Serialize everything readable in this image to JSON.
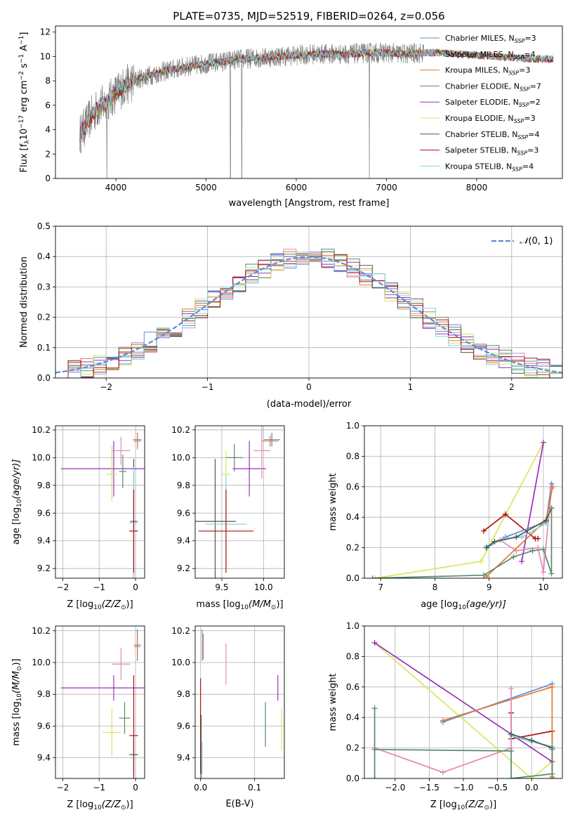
{
  "figure": {
    "title": "PLATE=0735, MJD=52519, FIBERID=0264, z=0.056"
  },
  "colors": {
    "chabrier_miles": "#5b8bd6",
    "salpeter_miles": "#e587b8",
    "kroupa_miles": "#e07b2e",
    "chabrier_elodie": "#5a8a6a",
    "salpeter_elodie": "#9b30b8",
    "kroupa_elodie": "#d4e85a",
    "chabrier_stelib": "#4a5a4a",
    "salpeter_stelib": "#b01010",
    "kroupa_stelib": "#7fd6e0",
    "data": "#808080",
    "gaussian": "#5b8bd6"
  },
  "chart_data": [
    {
      "id": "spectrum",
      "type": "line",
      "xlabel": "wavelength [Angstrom, rest frame]",
      "ylabel_main": "Flux [f",
      "ylabel_sub": "λ",
      "ylabel_rest": "10",
      "ylabel_sup1": "−17",
      "ylabel_rest2": " erg cm",
      "ylabel_sup2": "−2",
      "ylabel_rest3": " s",
      "ylabel_sup3": "−1",
      "ylabel_rest4": " A",
      "ylabel_sup4": "−1",
      "ylabel_rest5": "]",
      "xlim": [
        3330,
        8950
      ],
      "ylim": [
        0,
        12.5
      ],
      "xticks": [
        4000,
        5000,
        6000,
        7000,
        8000
      ],
      "yticks": [
        0,
        2,
        4,
        6,
        8,
        10,
        12
      ],
      "legend_position": "right",
      "legend": [
        {
          "pre": "Chabrier MILES, N",
          "sub": "SSP",
          "post": "=3",
          "color_key": "chabrier_miles"
        },
        {
          "pre": "Salpeter MILES, N",
          "sub": "SSP",
          "post": "=4",
          "color_key": "salpeter_miles"
        },
        {
          "pre": "Kroupa MILES, N",
          "sub": "SSP",
          "post": "=3",
          "color_key": "kroupa_miles"
        },
        {
          "pre": "Chabrier ELODIE, N",
          "sub": "SSP",
          "post": "=7",
          "color_key": "chabrier_elodie"
        },
        {
          "pre": "Salpeter ELODIE, N",
          "sub": "SSP",
          "post": "=2",
          "color_key": "salpeter_elodie"
        },
        {
          "pre": "Kroupa ELODIE, N",
          "sub": "SSP",
          "post": "=3",
          "color_key": "kroupa_elodie"
        },
        {
          "pre": "Chabrier STELIB, N",
          "sub": "SSP",
          "post": "=4",
          "color_key": "chabrier_stelib"
        },
        {
          "pre": "Salpeter STELIB, N",
          "sub": "SSP",
          "post": "=3",
          "color_key": "salpeter_stelib"
        },
        {
          "pre": "Kroupa STELIB, N",
          "sub": "SSP",
          "post": "=4",
          "color_key": "kroupa_stelib"
        }
      ],
      "continuum_wavelength": [
        3600,
        3700,
        3800,
        3900,
        4000,
        4100,
        4200,
        4300,
        4400,
        4600,
        4800,
        5000,
        5200,
        5400,
        5600,
        5800,
        6000,
        6200,
        6400,
        6600,
        6800,
        7000,
        7200,
        7400,
        7600,
        7800,
        8000,
        8200,
        8400,
        8600,
        8800
      ],
      "continuum_flux": [
        3.6,
        4.8,
        5.8,
        6.2,
        7.0,
        7.6,
        8.0,
        8.3,
        8.5,
        8.9,
        9.2,
        9.4,
        9.6,
        9.8,
        9.9,
        10.0,
        10.1,
        10.2,
        10.2,
        10.2,
        10.3,
        10.3,
        10.2,
        10.3,
        10.3,
        10.2,
        10.1,
        10.0,
        9.9,
        9.8,
        9.8
      ],
      "data_extent": [
        3600,
        7420
      ],
      "model_extent": [
        3600,
        8850
      ]
    },
    {
      "id": "residuals",
      "type": "step",
      "xlabel": "(data-model)/error",
      "ylabel": "Normed distribution",
      "xlim": [
        -2.5,
        2.5
      ],
      "ylim": [
        0,
        0.5
      ],
      "xticks": [
        -2,
        -1,
        0,
        1,
        2
      ],
      "yticks": [
        0.0,
        0.1,
        0.2,
        0.3,
        0.4,
        0.5
      ],
      "grid": true,
      "legend_position": "top-right",
      "gaussian_label_pre": "𝒩",
      "gaussian_label_post": "(0, 1)",
      "bins": 40
    },
    {
      "id": "age_vs_z",
      "type": "errorbar",
      "xlabel_pre": "Z [log",
      "xlabel_sub": "10",
      "xlabel_mid": "(Z/Z",
      "xlabel_sub2": "⊙",
      "xlabel_post": ")]",
      "ylabel_pre": "age  [log",
      "ylabel_sub": "10",
      "ylabel_post": "(age/yr)]",
      "xlim": [
        -2.2,
        0.25
      ],
      "ylim": [
        9.13,
        10.23
      ],
      "xticks": [
        -2,
        -1,
        0
      ],
      "yticks": [
        9.2,
        9.4,
        9.6,
        9.8,
        10.0,
        10.2
      ],
      "grid": true,
      "points": [
        {
          "x": -0.6,
          "y": 9.92,
          "xerr": 1.45,
          "yerr": 0.2,
          "color_key": "salpeter_elodie"
        },
        {
          "x": -0.4,
          "y": 10.05,
          "xerr": 0.25,
          "yerr": 0.1,
          "color_key": "salpeter_miles"
        },
        {
          "x": -0.65,
          "y": 9.88,
          "xerr": 0.15,
          "yerr": 0.2,
          "color_key": "kroupa_elodie"
        },
        {
          "x": -0.35,
          "y": 9.9,
          "xerr": 0.1,
          "yerr": 0.12,
          "color_key": "chabrier_elodie"
        },
        {
          "x": 0.05,
          "y": 10.13,
          "xerr": 0.12,
          "yerr": 0.05,
          "color_key": "chabrier_miles"
        },
        {
          "x": 0.05,
          "y": 10.12,
          "xerr": 0.1,
          "yerr": 0.06,
          "color_key": "kroupa_miles"
        },
        {
          "x": -0.05,
          "y": 9.54,
          "xerr": 0.1,
          "yerr": 0.45,
          "color_key": "chabrier_stelib"
        },
        {
          "x": -0.05,
          "y": 9.53,
          "xerr": 0.12,
          "yerr": 0.4,
          "color_key": "kroupa_stelib"
        },
        {
          "x": -0.05,
          "y": 9.47,
          "xerr": 0.12,
          "yerr": 0.3,
          "color_key": "salpeter_stelib"
        }
      ]
    },
    {
      "id": "age_vs_mass",
      "type": "errorbar",
      "xlabel_pre": "mass [log",
      "xlabel_sub": "10",
      "xlabel_mid": "(M/M",
      "xlabel_sub2": "⊙",
      "xlabel_post": ")]",
      "xlim": [
        9.18,
        10.25
      ],
      "ylim": [
        9.13,
        10.23
      ],
      "xticks": [
        9.5,
        10.0
      ],
      "yticks": [
        9.2,
        9.4,
        9.6,
        9.8,
        10.0,
        10.2
      ],
      "grid": true,
      "points": [
        {
          "x": 9.83,
          "y": 9.92,
          "xerr": 0.2,
          "yerr": 0.2,
          "color_key": "salpeter_elodie"
        },
        {
          "x": 9.98,
          "y": 10.05,
          "xerr": 0.1,
          "yerr": 0.2,
          "color_key": "salpeter_miles"
        },
        {
          "x": 9.55,
          "y": 9.88,
          "xerr": 0.05,
          "yerr": 0.17,
          "color_key": "kroupa_elodie"
        },
        {
          "x": 9.65,
          "y": 10.0,
          "xerr": 0.1,
          "yerr": 0.1,
          "color_key": "chabrier_elodie"
        },
        {
          "x": 10.1,
          "y": 10.13,
          "xerr": 0.1,
          "yerr": 0.05,
          "color_key": "chabrier_miles"
        },
        {
          "x": 10.08,
          "y": 10.12,
          "xerr": 0.1,
          "yerr": 0.04,
          "color_key": "kroupa_miles"
        },
        {
          "x": 9.42,
          "y": 9.54,
          "xerr": 0.25,
          "yerr": 0.45,
          "color_key": "chabrier_stelib"
        },
        {
          "x": 9.55,
          "y": 9.52,
          "xerr": 0.25,
          "yerr": 0.35,
          "color_key": "kroupa_stelib"
        },
        {
          "x": 9.55,
          "y": 9.47,
          "xerr": 0.33,
          "yerr": 0.3,
          "color_key": "salpeter_stelib"
        }
      ]
    },
    {
      "id": "weight_vs_age",
      "type": "line",
      "xlabel_pre": "age  [log",
      "xlabel_sub": "10",
      "xlabel_post": "(age/yr)]",
      "ylabel": "mass weight",
      "xlim": [
        6.7,
        10.35
      ],
      "ylim": [
        0,
        1
      ],
      "xticks": [
        7,
        8,
        9,
        10
      ],
      "yticks": [
        0.0,
        0.2,
        0.4,
        0.6,
        0.8,
        1.0
      ],
      "grid": true,
      "series": [
        {
          "color_key": "kroupa_elodie",
          "x": [
            6.9,
            8.85,
            10.0
          ],
          "y": [
            0.0,
            0.11,
            0.89
          ]
        },
        {
          "color_key": "salpeter_elodie",
          "x": [
            9.6,
            10.0
          ],
          "y": [
            0.11,
            0.89
          ]
        },
        {
          "color_key": "salpeter_stelib",
          "x": [
            8.9,
            9.3,
            9.85,
            9.9
          ],
          "y": [
            0.31,
            0.42,
            0.26,
            0.26
          ]
        },
        {
          "color_key": "chabrier_miles",
          "x": [
            8.95,
            9.3,
            10.05,
            10.15
          ],
          "y": [
            0.2,
            0.27,
            0.37,
            0.62
          ]
        },
        {
          "color_key": "salpeter_miles",
          "x": [
            9.2,
            9.5,
            9.9,
            10.0,
            10.15
          ],
          "y": [
            0.25,
            0.18,
            0.2,
            0.04,
            0.59
          ]
        },
        {
          "color_key": "kroupa_miles",
          "x": [
            8.95,
            10.05,
            10.17
          ],
          "y": [
            0.01,
            0.38,
            0.6
          ]
        },
        {
          "color_key": "kroupa_stelib",
          "x": [
            8.95,
            9.3,
            9.6,
            10.05
          ],
          "y": [
            0.21,
            0.26,
            0.27,
            0.36
          ]
        },
        {
          "color_key": "chabrier_stelib",
          "x": [
            8.95,
            9.1,
            9.5,
            10.05,
            10.15
          ],
          "y": [
            0.2,
            0.24,
            0.27,
            0.38,
            0.46
          ]
        },
        {
          "color_key": "chabrier_elodie",
          "x": [
            6.85,
            8.9,
            9.45,
            9.8,
            10.0,
            10.15,
            10.15
          ],
          "y": [
            0.0,
            0.02,
            0.14,
            0.18,
            0.19,
            0.03,
            0.46
          ]
        }
      ]
    },
    {
      "id": "mass_vs_z",
      "type": "errorbar",
      "xlabel_pre": "Z [log",
      "xlabel_sub": "10",
      "xlabel_mid": "(Z/Z",
      "xlabel_sub2": "⊙",
      "xlabel_post": ")]",
      "ylabel_pre": "mass [log",
      "ylabel_sub": "10",
      "ylabel_mid": "(M/M",
      "ylabel_sub2": "⊙",
      "ylabel_post": ")]",
      "xlim": [
        -2.2,
        0.25
      ],
      "ylim": [
        9.27,
        10.23
      ],
      "xticks": [
        -2,
        -1,
        0
      ],
      "yticks": [
        9.4,
        9.6,
        9.8,
        10.0,
        10.2
      ],
      "grid": true,
      "points": [
        {
          "x": -0.6,
          "y": 9.84,
          "xerr": 1.45,
          "yerr": 0.08,
          "color_key": "salpeter_elodie"
        },
        {
          "x": -0.4,
          "y": 9.99,
          "xerr": 0.25,
          "yerr": 0.1,
          "color_key": "salpeter_miles"
        },
        {
          "x": -0.65,
          "y": 9.56,
          "xerr": 0.25,
          "yerr": 0.15,
          "color_key": "kroupa_elodie"
        },
        {
          "x": -0.3,
          "y": 9.65,
          "xerr": 0.15,
          "yerr": 0.1,
          "color_key": "chabrier_elodie"
        },
        {
          "x": 0.05,
          "y": 10.11,
          "xerr": 0.1,
          "yerr": 0.1,
          "color_key": "chabrier_miles"
        },
        {
          "x": 0.05,
          "y": 10.1,
          "xerr": 0.08,
          "yerr": 0.08,
          "color_key": "kroupa_miles"
        },
        {
          "x": -0.05,
          "y": 9.42,
          "xerr": 0.12,
          "yerr": 0.12,
          "color_key": "chabrier_stelib"
        },
        {
          "x": -0.05,
          "y": 9.4,
          "xerr": 0.08,
          "yerr": 0.1,
          "color_key": "kroupa_stelib"
        },
        {
          "x": -0.05,
          "y": 9.54,
          "xerr": 0.12,
          "yerr": 0.38,
          "color_key": "salpeter_stelib"
        }
      ]
    },
    {
      "id": "mass_vs_ebv",
      "type": "errorbar",
      "xlabel": "E(B-V)",
      "xlim": [
        -0.01,
        0.155
      ],
      "ylim": [
        9.27,
        10.23
      ],
      "xticks": [
        0.0,
        0.1
      ],
      "yticks": [
        9.4,
        9.6,
        9.8,
        10.0,
        10.2
      ],
      "grid": true,
      "points": [
        {
          "x": 0.003,
          "y": 10.11,
          "xerr": 0,
          "yerr": 0.1,
          "color_key": "chabrier_miles"
        },
        {
          "x": 0.005,
          "y": 10.1,
          "xerr": 0,
          "yerr": 0.08,
          "color_key": "kroupa_miles"
        },
        {
          "x": 0.047,
          "y": 9.99,
          "xerr": 0,
          "yerr": 0.13,
          "color_key": "salpeter_miles"
        },
        {
          "x": 0.143,
          "y": 9.84,
          "xerr": 0,
          "yerr": 0.08,
          "color_key": "salpeter_elodie"
        },
        {
          "x": 0.15,
          "y": 9.58,
          "xerr": 0,
          "yerr": 0.13,
          "color_key": "kroupa_elodie"
        },
        {
          "x": 0.12,
          "y": 9.61,
          "xerr": 0,
          "yerr": 0.14,
          "color_key": "chabrier_elodie"
        },
        {
          "x": 0.0,
          "y": 9.6,
          "xerr": 0,
          "yerr": 0.3,
          "color_key": "salpeter_stelib"
        },
        {
          "x": 0.003,
          "y": 9.4,
          "xerr": 0,
          "yerr": 0.1,
          "color_key": "kroupa_stelib"
        },
        {
          "x": 0.001,
          "y": 9.47,
          "xerr": 0,
          "yerr": 0.2,
          "color_key": "chabrier_stelib"
        }
      ]
    },
    {
      "id": "weight_vs_z",
      "type": "line",
      "xlabel_pre": "Z [log",
      "xlabel_sub": "10",
      "xlabel_mid": "(Z/Z",
      "xlabel_sub2": "⊙",
      "xlabel_post": ")]",
      "ylabel": "mass weight",
      "xlim": [
        -2.45,
        0.45
      ],
      "ylim": [
        0,
        1
      ],
      "xticks": [
        -2.0,
        -1.5,
        -1.0,
        -0.5,
        0.0
      ],
      "xticklabels": [
        "−2.0",
        "−1.5",
        "−1.0",
        "−0.5",
        "0.0"
      ],
      "yticks": [
        0.0,
        0.2,
        0.4,
        0.6,
        0.8,
        1.0
      ],
      "grid": true,
      "series": [
        {
          "color_key": "kroupa_elodie",
          "x": [
            -2.3,
            0.0,
            0.3
          ],
          "y": [
            0.89,
            0.0,
            0.11
          ]
        },
        {
          "color_key": "salpeter_elodie",
          "x": [
            -2.3,
            0.3
          ],
          "y": [
            0.89,
            0.11
          ]
        },
        {
          "color_key": "salpeter_stelib",
          "x": [
            -0.3,
            -0.3,
            0.3,
            0.3
          ],
          "y": [
            0.43,
            0.26,
            0.31,
            0.0
          ]
        },
        {
          "color_key": "chabrier_miles",
          "x": [
            -1.3,
            0.3
          ],
          "y": [
            0.37,
            0.62
          ]
        },
        {
          "color_key": "kroupa_miles",
          "x": [
            -1.3,
            0.3,
            0.3
          ],
          "y": [
            0.38,
            0.6,
            0.01
          ]
        },
        {
          "color_key": "salpeter_miles",
          "x": [
            -2.3,
            -1.3,
            -0.3,
            -0.3
          ],
          "y": [
            0.2,
            0.04,
            0.2,
            0.59
          ]
        },
        {
          "color_key": "kroupa_stelib",
          "x": [
            -0.3,
            0.0,
            0.3
          ],
          "y": [
            0.28,
            0.24,
            0.21
          ]
        },
        {
          "color_key": "chabrier_stelib",
          "x": [
            -0.3,
            0.0,
            0.3
          ],
          "y": [
            0.29,
            0.25,
            0.2
          ]
        },
        {
          "color_key": "chabrier_elodie",
          "x": [
            -2.3,
            -2.3,
            -2.3,
            -0.3,
            -0.3,
            0.3,
            0.3,
            0.3
          ],
          "y": [
            0.0,
            0.46,
            0.19,
            0.18,
            0.0,
            0.03,
            0.0,
            0.19
          ]
        }
      ]
    }
  ]
}
